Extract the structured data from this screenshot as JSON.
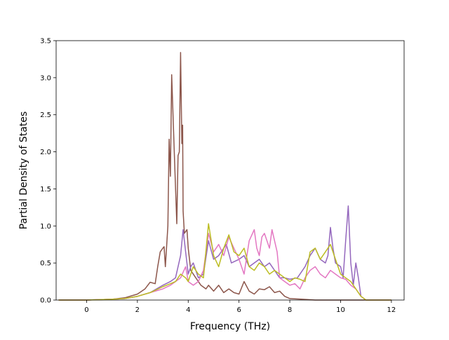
{
  "chart_data": {
    "type": "line",
    "title": "",
    "xlabel": "Frequency (THz)",
    "ylabel": "Partial Density of States",
    "xlim": [
      -1.2,
      12.5
    ],
    "ylim": [
      0,
      3.5
    ],
    "x_ticks": [
      0,
      2,
      4,
      6,
      8,
      10,
      12
    ],
    "y_ticks": [
      0.0,
      0.5,
      1.0,
      1.5,
      2.0,
      2.5,
      3.0,
      3.5
    ],
    "x_tick_labels": [
      "0",
      "2",
      "4",
      "6",
      "8",
      "10",
      "12"
    ],
    "y_tick_labels": [
      "0.0",
      "0.5",
      "1.0",
      "1.5",
      "2.0",
      "2.5",
      "3.0",
      "3.5"
    ],
    "grid": false,
    "legend": "none",
    "series": [
      {
        "color": "#8c564b",
        "points": [
          [
            -1.1,
            0
          ],
          [
            0,
            0
          ],
          [
            1,
            0.01
          ],
          [
            1.5,
            0.03
          ],
          [
            2,
            0.08
          ],
          [
            2.3,
            0.15
          ],
          [
            2.5,
            0.24
          ],
          [
            2.7,
            0.22
          ],
          [
            2.8,
            0.45
          ],
          [
            2.9,
            0.65
          ],
          [
            3.0,
            0.7
          ],
          [
            3.05,
            0.72
          ],
          [
            3.1,
            0.45
          ],
          [
            3.2,
            1.0
          ],
          [
            3.25,
            2.17
          ],
          [
            3.3,
            1.67
          ],
          [
            3.35,
            3.04
          ],
          [
            3.45,
            2.0
          ],
          [
            3.55,
            1.03
          ],
          [
            3.6,
            1.95
          ],
          [
            3.65,
            2.0
          ],
          [
            3.7,
            3.34
          ],
          [
            3.75,
            2.11
          ],
          [
            3.78,
            2.36
          ],
          [
            3.8,
            1.2
          ],
          [
            3.85,
            0.9
          ],
          [
            3.95,
            0.95
          ],
          [
            4.0,
            0.7
          ],
          [
            4.1,
            0.4
          ],
          [
            4.3,
            0.3
          ],
          [
            4.5,
            0.2
          ],
          [
            4.7,
            0.15
          ],
          [
            4.8,
            0.2
          ],
          [
            5.0,
            0.12
          ],
          [
            5.2,
            0.2
          ],
          [
            5.4,
            0.1
          ],
          [
            5.6,
            0.15
          ],
          [
            5.8,
            0.1
          ],
          [
            6.0,
            0.08
          ],
          [
            6.2,
            0.25
          ],
          [
            6.4,
            0.12
          ],
          [
            6.6,
            0.08
          ],
          [
            6.8,
            0.15
          ],
          [
            7.0,
            0.14
          ],
          [
            7.2,
            0.18
          ],
          [
            7.4,
            0.1
          ],
          [
            7.6,
            0.12
          ],
          [
            7.8,
            0.05
          ],
          [
            8.0,
            0.02
          ],
          [
            8.5,
            0.01
          ],
          [
            9,
            0
          ],
          [
            12,
            0
          ]
        ]
      },
      {
        "color": "#9467bd",
        "points": [
          [
            -1.1,
            0
          ],
          [
            0,
            0
          ],
          [
            1,
            0.01
          ],
          [
            1.5,
            0.02
          ],
          [
            2,
            0.05
          ],
          [
            2.5,
            0.1
          ],
          [
            3.0,
            0.2
          ],
          [
            3.3,
            0.25
          ],
          [
            3.5,
            0.3
          ],
          [
            3.7,
            0.6
          ],
          [
            3.8,
            0.95
          ],
          [
            3.9,
            0.65
          ],
          [
            4.0,
            0.35
          ],
          [
            4.1,
            0.45
          ],
          [
            4.2,
            0.5
          ],
          [
            4.4,
            0.3
          ],
          [
            4.6,
            0.35
          ],
          [
            4.8,
            0.8
          ],
          [
            5.0,
            0.55
          ],
          [
            5.2,
            0.6
          ],
          [
            5.5,
            0.75
          ],
          [
            5.7,
            0.5
          ],
          [
            6.0,
            0.55
          ],
          [
            6.2,
            0.6
          ],
          [
            6.4,
            0.45
          ],
          [
            6.6,
            0.5
          ],
          [
            6.8,
            0.55
          ],
          [
            7.0,
            0.45
          ],
          [
            7.2,
            0.5
          ],
          [
            7.4,
            0.4
          ],
          [
            7.6,
            0.3
          ],
          [
            7.8,
            0.3
          ],
          [
            8.0,
            0.28
          ],
          [
            8.3,
            0.3
          ],
          [
            8.6,
            0.45
          ],
          [
            8.8,
            0.6
          ],
          [
            9.0,
            0.7
          ],
          [
            9.2,
            0.55
          ],
          [
            9.4,
            0.5
          ],
          [
            9.5,
            0.6
          ],
          [
            9.6,
            0.98
          ],
          [
            9.7,
            0.7
          ],
          [
            9.8,
            0.5
          ],
          [
            10.0,
            0.45
          ],
          [
            10.1,
            0.3
          ],
          [
            10.2,
            0.8
          ],
          [
            10.3,
            1.27
          ],
          [
            10.4,
            0.5
          ],
          [
            10.5,
            0.2
          ],
          [
            10.6,
            0.5
          ],
          [
            10.7,
            0.3
          ],
          [
            10.8,
            0.05
          ],
          [
            11,
            0
          ],
          [
            12,
            0
          ]
        ]
      },
      {
        "color": "#e377c2",
        "points": [
          [
            -1.1,
            0
          ],
          [
            0,
            0
          ],
          [
            1,
            0.01
          ],
          [
            1.5,
            0.02
          ],
          [
            2,
            0.05
          ],
          [
            2.5,
            0.1
          ],
          [
            3.0,
            0.15
          ],
          [
            3.3,
            0.2
          ],
          [
            3.5,
            0.25
          ],
          [
            3.7,
            0.3
          ],
          [
            3.9,
            0.45
          ],
          [
            4.0,
            0.25
          ],
          [
            4.2,
            0.2
          ],
          [
            4.4,
            0.25
          ],
          [
            4.6,
            0.4
          ],
          [
            4.8,
            0.9
          ],
          [
            5.0,
            0.65
          ],
          [
            5.2,
            0.75
          ],
          [
            5.4,
            0.6
          ],
          [
            5.6,
            0.85
          ],
          [
            5.8,
            0.7
          ],
          [
            6.0,
            0.55
          ],
          [
            6.2,
            0.35
          ],
          [
            6.4,
            0.8
          ],
          [
            6.6,
            0.95
          ],
          [
            6.7,
            0.7
          ],
          [
            6.8,
            0.6
          ],
          [
            6.9,
            0.85
          ],
          [
            7.0,
            0.9
          ],
          [
            7.2,
            0.7
          ],
          [
            7.3,
            0.95
          ],
          [
            7.5,
            0.65
          ],
          [
            7.6,
            0.3
          ],
          [
            7.8,
            0.25
          ],
          [
            8.0,
            0.2
          ],
          [
            8.2,
            0.22
          ],
          [
            8.4,
            0.15
          ],
          [
            8.6,
            0.3
          ],
          [
            8.8,
            0.4
          ],
          [
            9.0,
            0.45
          ],
          [
            9.2,
            0.35
          ],
          [
            9.4,
            0.3
          ],
          [
            9.6,
            0.4
          ],
          [
            9.8,
            0.35
          ],
          [
            10.0,
            0.3
          ],
          [
            10.2,
            0.28
          ],
          [
            10.4,
            0.2
          ],
          [
            10.6,
            0.15
          ],
          [
            10.8,
            0.05
          ],
          [
            11,
            0
          ],
          [
            12,
            0
          ]
        ]
      },
      {
        "color": "#bcbd22",
        "points": [
          [
            -1.1,
            0
          ],
          [
            0,
            0
          ],
          [
            1,
            0.01
          ],
          [
            1.5,
            0.02
          ],
          [
            2,
            0.05
          ],
          [
            2.5,
            0.1
          ],
          [
            3.0,
            0.18
          ],
          [
            3.3,
            0.22
          ],
          [
            3.5,
            0.25
          ],
          [
            3.7,
            0.35
          ],
          [
            3.9,
            0.3
          ],
          [
            4.0,
            0.25
          ],
          [
            4.2,
            0.45
          ],
          [
            4.4,
            0.35
          ],
          [
            4.6,
            0.3
          ],
          [
            4.8,
            1.03
          ],
          [
            5.0,
            0.6
          ],
          [
            5.2,
            0.45
          ],
          [
            5.4,
            0.7
          ],
          [
            5.6,
            0.88
          ],
          [
            5.8,
            0.65
          ],
          [
            6.0,
            0.6
          ],
          [
            6.2,
            0.7
          ],
          [
            6.4,
            0.45
          ],
          [
            6.6,
            0.4
          ],
          [
            6.8,
            0.5
          ],
          [
            7.0,
            0.45
          ],
          [
            7.2,
            0.35
          ],
          [
            7.4,
            0.4
          ],
          [
            7.6,
            0.35
          ],
          [
            7.8,
            0.3
          ],
          [
            8.0,
            0.25
          ],
          [
            8.2,
            0.3
          ],
          [
            8.4,
            0.28
          ],
          [
            8.6,
            0.25
          ],
          [
            8.8,
            0.65
          ],
          [
            9.0,
            0.7
          ],
          [
            9.2,
            0.55
          ],
          [
            9.4,
            0.65
          ],
          [
            9.6,
            0.75
          ],
          [
            9.8,
            0.55
          ],
          [
            10.0,
            0.35
          ],
          [
            10.2,
            0.3
          ],
          [
            10.4,
            0.25
          ],
          [
            10.6,
            0.15
          ],
          [
            10.8,
            0.05
          ],
          [
            11,
            0
          ],
          [
            12,
            0
          ]
        ]
      }
    ]
  }
}
